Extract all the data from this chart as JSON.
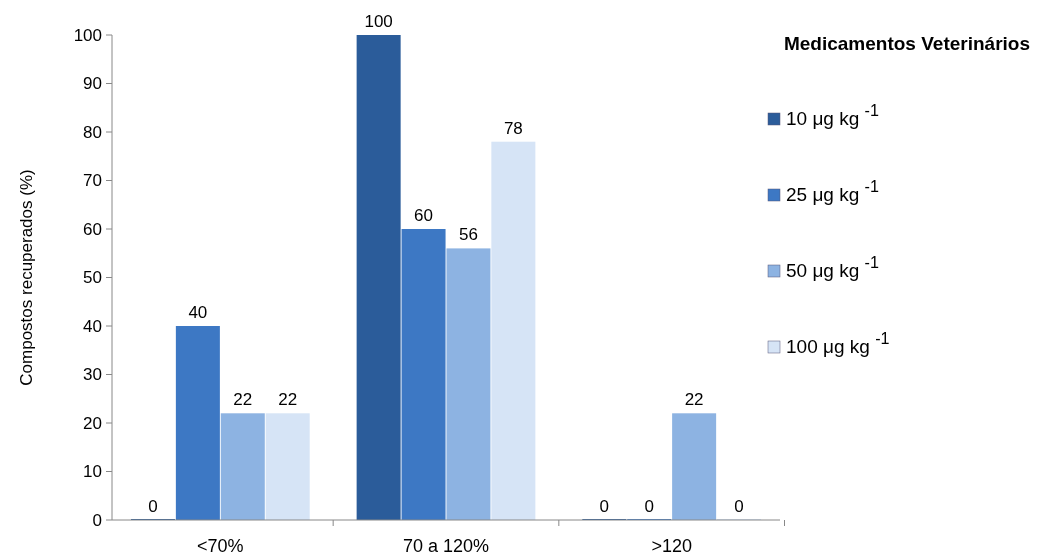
{
  "chart_data": {
    "type": "bar",
    "ylabel": "Compostos recuperados  (%)",
    "legend_title": "Medicamentos Veterinários",
    "categories": [
      "<70%",
      "70 a 120%",
      ">120"
    ],
    "series": [
      {
        "name": "10 μg kg $^{-1}$",
        "color": "#2b5c9a",
        "values": [
          0,
          100,
          0
        ]
      },
      {
        "name": "25 μg kg $^{-1}$",
        "color": "#3d78c4",
        "values": [
          40,
          60,
          0
        ]
      },
      {
        "name": "50 μg kg $^{-1}$",
        "color": "#8db3e2",
        "values": [
          22,
          56,
          22
        ]
      },
      {
        "name": "100 μg kg $^{-1}$",
        "color": "#d6e4f6",
        "values": [
          22,
          78,
          0
        ]
      }
    ],
    "ylim": [
      0,
      100
    ],
    "yticks": [
      0,
      10,
      20,
      30,
      40,
      50,
      60,
      70,
      80,
      90,
      100
    ],
    "data_labels": true,
    "grid": false,
    "legend": "right"
  }
}
